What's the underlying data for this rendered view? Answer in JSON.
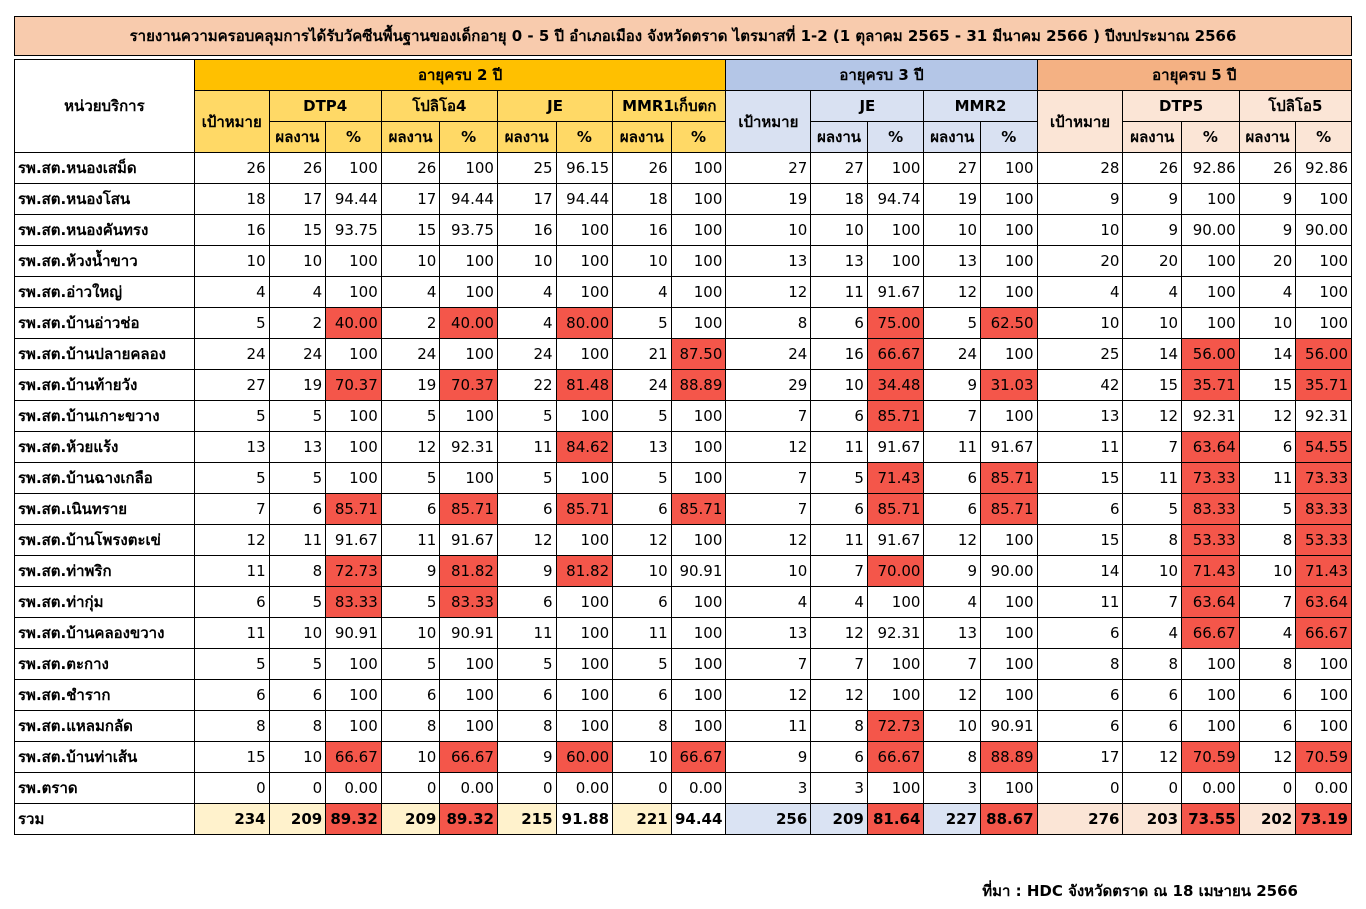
{
  "title": "รายงานความครอบคลุมการได้รับวัคซีนพื้นฐานของเด็กอายุ 0 - 5 ปี อำเภอเมือง จังหวัดตราด ไตรมาสที่ 1-2 (1 ตุลาคม 2565 - 31 มีนาคม 2566 ) ปีงบประมาณ 2566",
  "header": {
    "unit": "หน่วยบริการ",
    "age2": "อายุครบ 2 ปี",
    "age3": "อายุครบ 3 ปี",
    "age5": "อายุครบ 5 ปี",
    "target": "เป้าหมาย",
    "result": "ผลงาน",
    "pct": "%",
    "dtp4": "DTP4",
    "polio4": "โปลิโอ4",
    "je": "JE",
    "mmr1": "MMR1เก็บตก",
    "mmr2": "MMR2",
    "dtp5": "DTP5",
    "polio5": "โปลิโอ5"
  },
  "rows": [
    {
      "name": "รพ.สต.หนองเสม็ด",
      "v": [
        "26",
        "26",
        "100",
        "26",
        "100",
        "25",
        "96.15",
        "26",
        "100",
        "27",
        "27",
        "100",
        "27",
        "100",
        "28",
        "26",
        "92.86",
        "26",
        "92.86"
      ]
    },
    {
      "name": "รพ.สต.หนองโสน",
      "v": [
        "18",
        "17",
        "94.44",
        "17",
        "94.44",
        "17",
        "94.44",
        "18",
        "100",
        "19",
        "18",
        "94.74",
        "19",
        "100",
        "9",
        "9",
        "100",
        "9",
        "100"
      ]
    },
    {
      "name": "รพ.สต.หนองคันทรง",
      "v": [
        "16",
        "15",
        "93.75",
        "15",
        "93.75",
        "16",
        "100",
        "16",
        "100",
        "10",
        "10",
        "100",
        "10",
        "100",
        "10",
        "9",
        "90.00",
        "9",
        "90.00"
      ]
    },
    {
      "name": "รพ.สต.ห้วงน้ำขาว",
      "v": [
        "10",
        "10",
        "100",
        "10",
        "100",
        "10",
        "100",
        "10",
        "100",
        "13",
        "13",
        "100",
        "13",
        "100",
        "20",
        "20",
        "100",
        "20",
        "100"
      ]
    },
    {
      "name": "รพ.สต.อ่าวใหญ่",
      "v": [
        "4",
        "4",
        "100",
        "4",
        "100",
        "4",
        "100",
        "4",
        "100",
        "12",
        "11",
        "91.67",
        "12",
        "100",
        "4",
        "4",
        "100",
        "4",
        "100"
      ]
    },
    {
      "name": "รพ.สต.บ้านอ่าวช่อ",
      "v": [
        "5",
        "2",
        "40.00",
        "2",
        "40.00",
        "4",
        "80.00",
        "5",
        "100",
        "8",
        "6",
        "75.00",
        "5",
        "62.50",
        "10",
        "10",
        "100",
        "10",
        "100"
      ]
    },
    {
      "name": "รพ.สต.บ้านปลายคลอง",
      "v": [
        "24",
        "24",
        "100",
        "24",
        "100",
        "24",
        "100",
        "21",
        "87.50",
        "24",
        "16",
        "66.67",
        "24",
        "100",
        "25",
        "14",
        "56.00",
        "14",
        "56.00"
      ]
    },
    {
      "name": "รพ.สต.บ้านท้ายวัง",
      "v": [
        "27",
        "19",
        "70.37",
        "19",
        "70.37",
        "22",
        "81.48",
        "24",
        "88.89",
        "29",
        "10",
        "34.48",
        "9",
        "31.03",
        "42",
        "15",
        "35.71",
        "15",
        "35.71"
      ]
    },
    {
      "name": "รพ.สต.บ้านเกาะขวาง",
      "v": [
        "5",
        "5",
        "100",
        "5",
        "100",
        "5",
        "100",
        "5",
        "100",
        "7",
        "6",
        "85.71",
        "7",
        "100",
        "13",
        "12",
        "92.31",
        "12",
        "92.31"
      ]
    },
    {
      "name": "รพ.สต.ห้วยแร้ง",
      "v": [
        "13",
        "13",
        "100",
        "12",
        "92.31",
        "11",
        "84.62",
        "13",
        "100",
        "12",
        "11",
        "91.67",
        "11",
        "91.67",
        "11",
        "7",
        "63.64",
        "6",
        "54.55"
      ]
    },
    {
      "name": "รพ.สต.บ้านฉางเกลือ",
      "v": [
        "5",
        "5",
        "100",
        "5",
        "100",
        "5",
        "100",
        "5",
        "100",
        "7",
        "5",
        "71.43",
        "6",
        "85.71",
        "15",
        "11",
        "73.33",
        "11",
        "73.33"
      ]
    },
    {
      "name": "รพ.สต.เนินทราย",
      "v": [
        "7",
        "6",
        "85.71",
        "6",
        "85.71",
        "6",
        "85.71",
        "6",
        "85.71",
        "7",
        "6",
        "85.71",
        "6",
        "85.71",
        "6",
        "5",
        "83.33",
        "5",
        "83.33"
      ]
    },
    {
      "name": "รพ.สต.บ้านโพรงตะเข่",
      "v": [
        "12",
        "11",
        "91.67",
        "11",
        "91.67",
        "12",
        "100",
        "12",
        "100",
        "12",
        "11",
        "91.67",
        "12",
        "100",
        "15",
        "8",
        "53.33",
        "8",
        "53.33"
      ]
    },
    {
      "name": "รพ.สต.ท่าพริก",
      "v": [
        "11",
        "8",
        "72.73",
        "9",
        "81.82",
        "9",
        "81.82",
        "10",
        "90.91",
        "10",
        "7",
        "70.00",
        "9",
        "90.00",
        "14",
        "10",
        "71.43",
        "10",
        "71.43"
      ]
    },
    {
      "name": "รพ.สต.ท่ากุ่ม",
      "v": [
        "6",
        "5",
        "83.33",
        "5",
        "83.33",
        "6",
        "100",
        "6",
        "100",
        "4",
        "4",
        "100",
        "4",
        "100",
        "11",
        "7",
        "63.64",
        "7",
        "63.64"
      ]
    },
    {
      "name": "รพ.สต.บ้านคลองขวาง",
      "v": [
        "11",
        "10",
        "90.91",
        "10",
        "90.91",
        "11",
        "100",
        "11",
        "100",
        "13",
        "12",
        "92.31",
        "13",
        "100",
        "6",
        "4",
        "66.67",
        "4",
        "66.67"
      ]
    },
    {
      "name": "รพ.สต.ตะกาง",
      "v": [
        "5",
        "5",
        "100",
        "5",
        "100",
        "5",
        "100",
        "5",
        "100",
        "7",
        "7",
        "100",
        "7",
        "100",
        "8",
        "8",
        "100",
        "8",
        "100"
      ]
    },
    {
      "name": "รพ.สต.ชำราก",
      "v": [
        "6",
        "6",
        "100",
        "6",
        "100",
        "6",
        "100",
        "6",
        "100",
        "12",
        "12",
        "100",
        "12",
        "100",
        "6",
        "6",
        "100",
        "6",
        "100"
      ]
    },
    {
      "name": "รพ.สต.แหลมกลัด",
      "v": [
        "8",
        "8",
        "100",
        "8",
        "100",
        "8",
        "100",
        "8",
        "100",
        "11",
        "8",
        "72.73",
        "10",
        "90.91",
        "6",
        "6",
        "100",
        "6",
        "100"
      ]
    },
    {
      "name": "รพ.สต.บ้านท่าเส้น",
      "v": [
        "15",
        "10",
        "66.67",
        "10",
        "66.67",
        "9",
        "60.00",
        "10",
        "66.67",
        "9",
        "6",
        "66.67",
        "8",
        "88.89",
        "17",
        "12",
        "70.59",
        "12",
        "70.59"
      ]
    },
    {
      "name": "รพ.ตราด",
      "v": [
        "0",
        "0",
        "0.00",
        "0",
        "0.00",
        "0",
        "0.00",
        "0",
        "0.00",
        "3",
        "3",
        "100",
        "3",
        "100",
        "0",
        "0",
        "0.00",
        "0",
        "0.00"
      ]
    }
  ],
  "total": {
    "name": "รวม",
    "v": [
      "234",
      "209",
      "89.32",
      "209",
      "89.32",
      "215",
      "91.88",
      "221",
      "94.44",
      "256",
      "209",
      "81.64",
      "227",
      "88.67",
      "276",
      "203",
      "73.55",
      "202",
      "73.19"
    ]
  },
  "source": "ที่มา : HDC จังหวัดตราด ณ 18 เมษายน 2566",
  "colors": {
    "age2": "#ffc000",
    "age3": "#b4c6e7",
    "age5": "#f4b183",
    "below_target": "#f4564a",
    "title_bg": "#f8cbad"
  }
}
